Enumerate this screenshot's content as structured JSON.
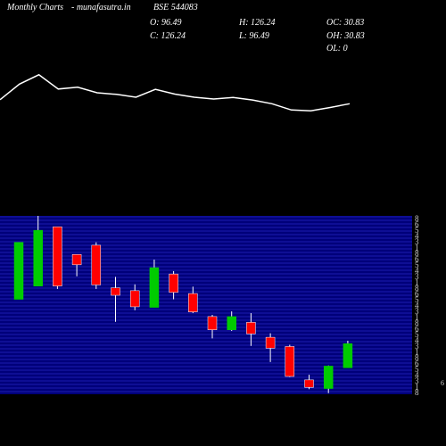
{
  "header": {
    "site_label": "Monthly Charts",
    "source": "- munafasutra.in",
    "symbol": "BSE 544083",
    "open": "O: 96.49",
    "high": "H: 126.24",
    "oc": "OC: 30.83",
    "close": "C: 126.24",
    "low": "L: 96.49",
    "oh": "OH: 30.83",
    "ol": "OL: 0"
  },
  "colors": {
    "background": "#000000",
    "up": "#00cc00",
    "down": "#ff0000",
    "grid_band": "#00007a",
    "grid_line": "#3a3ae0",
    "line": "#ffffff",
    "wick": "#ffffff"
  },
  "chart_data": {
    "type": "candlestick",
    "y_axis_labels": [
      "8",
      "6",
      "5",
      "4",
      "3",
      "1"
    ],
    "side_value": "6",
    "line_series": [
      -0.05,
      0.45,
      0.75,
      0.29,
      0.35,
      0.17,
      0.12,
      0.03,
      0.28,
      0.13,
      0.03,
      -0.03,
      0.02,
      -0.06,
      -0.18,
      -0.38,
      -0.41,
      -0.3,
      -0.18
    ],
    "candles": [
      {
        "open": 225,
        "close": 324,
        "high": 324,
        "low": 225
      },
      {
        "open": 248,
        "close": 345,
        "high": 370,
        "low": 248
      },
      {
        "open": 351,
        "close": 248,
        "high": 351,
        "low": 243
      },
      {
        "open": 303,
        "close": 285,
        "high": 303,
        "low": 265
      },
      {
        "open": 319,
        "close": 250,
        "high": 324,
        "low": 243
      },
      {
        "open": 245,
        "close": 232,
        "high": 264,
        "low": 186
      },
      {
        "open": 240,
        "close": 212,
        "high": 251,
        "low": 206
      },
      {
        "open": 211,
        "close": 280,
        "high": 294,
        "low": 211
      },
      {
        "open": 269,
        "close": 237,
        "high": 274,
        "low": 225
      },
      {
        "open": 235,
        "close": 203,
        "high": 247,
        "low": 201
      },
      {
        "open": 195,
        "close": 172,
        "high": 198,
        "low": 157
      },
      {
        "open": 172,
        "close": 195,
        "high": 204,
        "low": 170
      },
      {
        "open": 185,
        "close": 165,
        "high": 201,
        "low": 144
      },
      {
        "open": 159,
        "close": 140,
        "high": 166,
        "low": 116
      },
      {
        "open": 143,
        "close": 91,
        "high": 146,
        "low": 90
      },
      {
        "open": 85,
        "close": 72,
        "high": 94,
        "low": 69
      },
      {
        "open": 70,
        "close": 109,
        "high": 110,
        "low": 62
      },
      {
        "open": 106,
        "close": 148,
        "high": 153,
        "low": 106
      }
    ],
    "price_range": [
      60,
      370
    ]
  }
}
